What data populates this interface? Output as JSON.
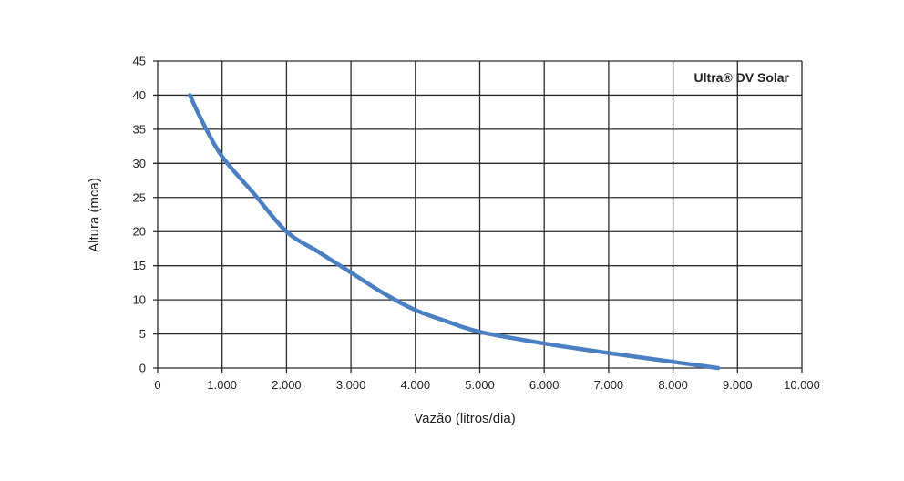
{
  "chart_data": {
    "type": "line",
    "title": "",
    "xlabel": "Vazão (litros/dia)",
    "ylabel": "Altura (mca)",
    "xlim": [
      0,
      10000
    ],
    "ylim": [
      0,
      45
    ],
    "x_ticks": [
      0,
      1000,
      2000,
      3000,
      4000,
      5000,
      6000,
      7000,
      8000,
      9000,
      10000
    ],
    "x_tick_labels": [
      "0",
      "1.000",
      "2.000",
      "3.000",
      "4.000",
      "5.000",
      "6.000",
      "7.000",
      "8.000",
      "9.000",
      "10.000"
    ],
    "y_ticks": [
      0,
      5,
      10,
      15,
      20,
      25,
      30,
      35,
      40,
      45
    ],
    "y_tick_labels": [
      "0",
      "5",
      "10",
      "15",
      "20",
      "25",
      "30",
      "35",
      "40",
      "45"
    ],
    "grid": true,
    "legend_position": "top-right",
    "series": [
      {
        "name": "Ultra® DV Solar",
        "color": "#4a7fc1",
        "x": [
          500,
          700,
          1000,
          1500,
          2000,
          2500,
          3000,
          3500,
          4000,
          4500,
          5000,
          6000,
          7000,
          8000,
          8700
        ],
        "y": [
          40,
          36,
          31,
          25.5,
          20,
          17,
          14,
          11,
          8.5,
          6.8,
          5.3,
          3.6,
          2.2,
          0.9,
          0
        ]
      }
    ]
  }
}
